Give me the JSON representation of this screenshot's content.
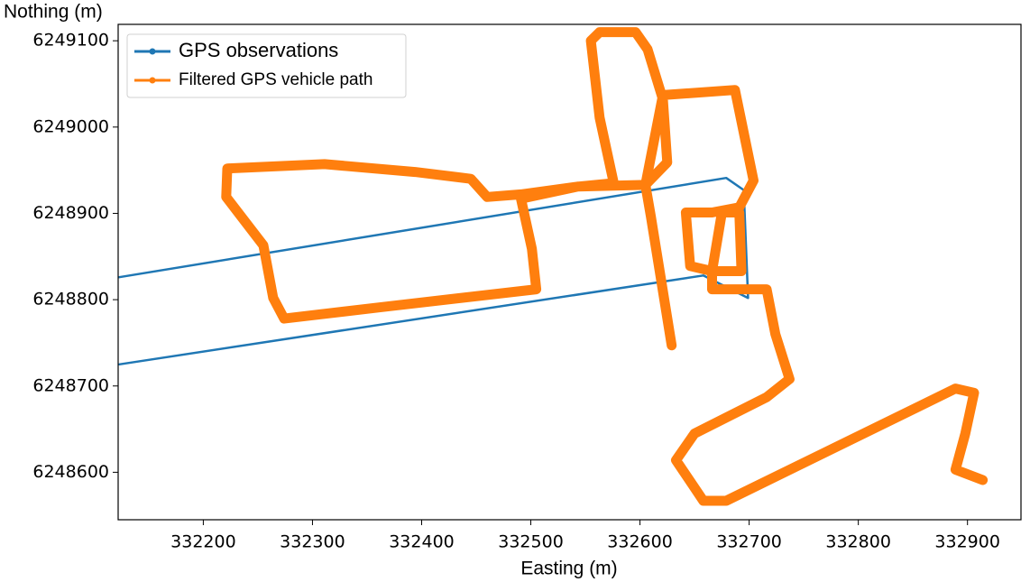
{
  "chart_data": {
    "type": "line",
    "x_label": "Easting (m)",
    "y_label": "Nothing (m)",
    "xlim": [
      332122,
      332949
    ],
    "ylim": [
      6248545,
      6249119
    ],
    "xticks": [
      332200,
      332300,
      332400,
      332500,
      332600,
      332700,
      332800,
      332900
    ],
    "yticks": [
      6248600,
      6248700,
      6248800,
      6248900,
      6249000,
      6249100
    ],
    "grid": false,
    "legend": "upper left",
    "series": [
      {
        "name": "GPS observations",
        "color": "#1f77b4",
        "x": [
          332123,
          332658,
          332699,
          332695,
          332679,
          332123
        ],
        "values": [
          6248725,
          6248828,
          6248802,
          6248927,
          6248941,
          6248826
        ]
      },
      {
        "name": "Filtered GPS vehicle path",
        "color": "#ff7f0e",
        "x": [
          332629,
          332610,
          332605,
          332543,
          332491,
          332460,
          332445,
          332394,
          332311,
          332222,
          332221,
          332255,
          332264,
          332274,
          332361,
          332505,
          332501,
          332491,
          332543,
          332576,
          332563,
          332555,
          332563,
          332596,
          332607,
          332621,
          332625,
          332605,
          332621,
          332687,
          332704,
          332691,
          332666,
          332642,
          332646,
          332666,
          332693,
          332691,
          332675,
          332666,
          332666,
          332716,
          332724,
          332737,
          332716,
          332650,
          332633,
          332658,
          332679,
          332889,
          332906,
          332898,
          332889,
          332914
        ],
        "values": [
          6248747,
          6248896,
          6248933,
          6248931,
          6248922,
          6248919,
          6248940,
          6248948,
          6248957,
          6248952,
          6248919,
          6248863,
          6248802,
          6248778,
          6248791,
          6248812,
          6248859,
          6248917,
          6248931,
          6248935,
          6249011,
          6249100,
          6249110,
          6249110,
          6249090,
          6249032,
          6248959,
          6248933,
          6249037,
          6249043,
          6248938,
          6248907,
          6248901,
          6248901,
          6248839,
          6248833,
          6248833,
          6248901,
          6248901,
          6248833,
          6248812,
          6248812,
          6248760,
          6248708,
          6248687,
          6248645,
          6248614,
          6248567,
          6248567,
          6248697,
          6248692,
          6248645,
          6248603,
          6248591
        ]
      }
    ]
  }
}
